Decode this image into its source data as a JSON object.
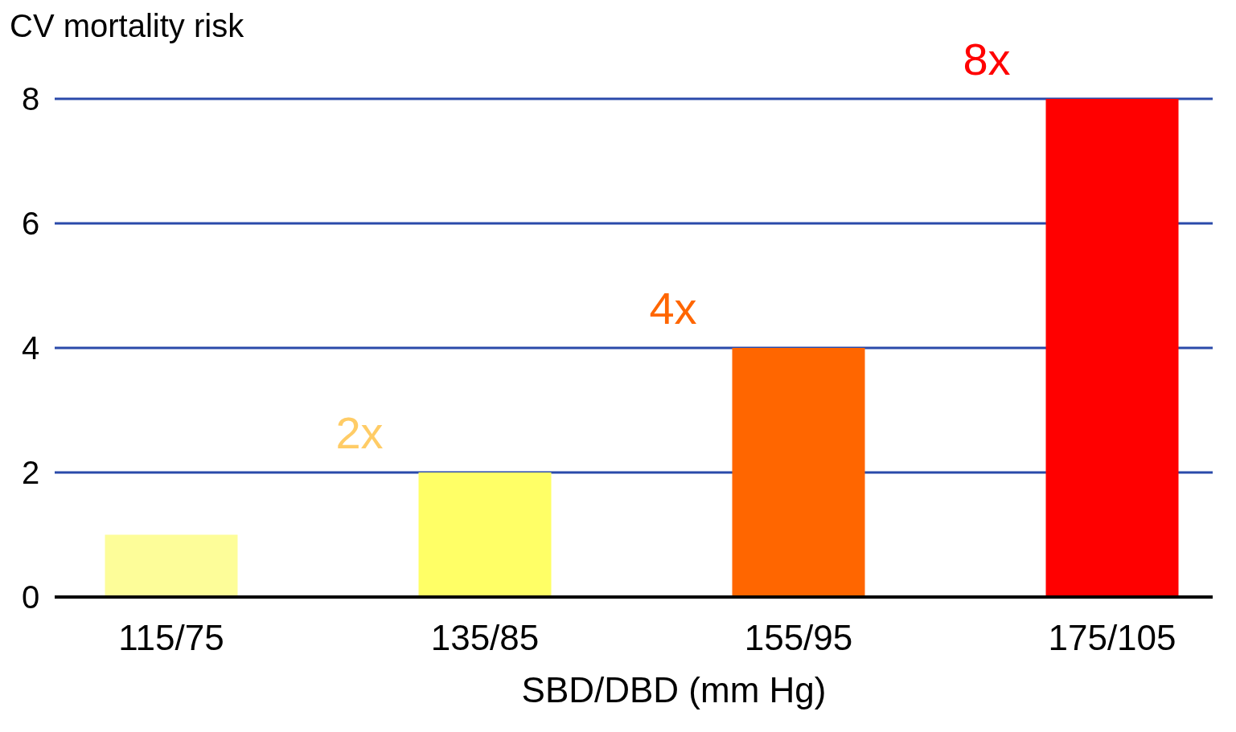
{
  "chart_data": {
    "type": "bar",
    "ylabel": "CV mortality risk",
    "xlabel": "SBD/DBD (mm Hg)",
    "categories": [
      "115/75",
      "135/85",
      "155/95",
      "175/105"
    ],
    "values": [
      1,
      2,
      4,
      8
    ],
    "colors": [
      "#fdfd99",
      "#ffff66",
      "#ff6600",
      "#ff0000"
    ],
    "ylim": [
      0,
      8
    ],
    "yticks": [
      0,
      2,
      4,
      6,
      8
    ],
    "grid": "y",
    "annotations": [
      {
        "text": "2x",
        "x": "135/85",
        "y": 2
      },
      {
        "text": "4x",
        "x": "155/95",
        "y": 4
      },
      {
        "text": "8x",
        "x": "175/105",
        "y": 8
      }
    ]
  }
}
